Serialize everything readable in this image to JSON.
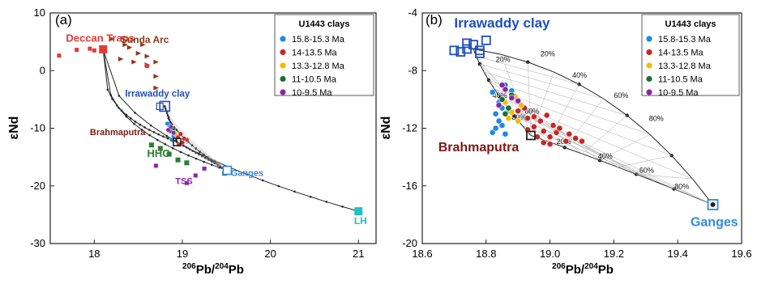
{
  "colors": {
    "c1": "#1e88e5",
    "c2": "#c62828",
    "c3": "#f9b800",
    "c4": "#1b6e3a",
    "c5": "#8e24aa",
    "deccan": "#e53935",
    "sunda": "#8b3a1a",
    "brahmaputra": "#7b1a12",
    "hhc": "#2e7d32",
    "tss": "#8e24aa",
    "ganges": "#2f8ae0",
    "irrawaddy": "#1f4fbf",
    "lh": "#20c0c8"
  },
  "chart_data": [
    {
      "panel": "(a)",
      "type": "scatter",
      "xlabel": "206Pb/204Pb",
      "ylabel": "εNd",
      "xlim": [
        17.5,
        21.2
      ],
      "ylim": [
        -30,
        10
      ],
      "xticks": [
        18,
        19,
        20,
        21
      ],
      "yticks": [
        -30,
        -20,
        -10,
        0,
        10
      ],
      "legend": {
        "title": "U1443 clays",
        "placement": "top-right",
        "entries": [
          "15.8-15.3 Ma",
          "14-13.5 Ma",
          "13.3-12.8 Ma",
          "11-10.5 Ma",
          "10-9.5 Ma"
        ]
      },
      "endmembers": [
        {
          "label": "Deccan Traps",
          "x": 18.1,
          "y": 3.7
        },
        {
          "label": "Irrawaddy clay",
          "x": 18.8,
          "y": -6.2
        },
        {
          "label": "Brahmaputra",
          "x": 18.94,
          "y": -12.4
        },
        {
          "label": "Ganges",
          "x": 19.51,
          "y": -17.3
        },
        {
          "label": "LH",
          "x": 21.0,
          "y": -24.4
        }
      ],
      "annotations": [
        "Sunda Arc",
        "HHC",
        "TSS"
      ],
      "sunda_arc": [
        [
          18.2,
          5.5
        ],
        [
          18.35,
          4.5
        ],
        [
          18.5,
          3.0
        ],
        [
          18.6,
          2.5
        ],
        [
          18.45,
          1.5
        ],
        [
          18.7,
          1.5
        ],
        [
          18.3,
          2.0
        ],
        [
          18.6,
          1.0
        ],
        [
          18.7,
          -1.0
        ],
        [
          18.7,
          -3.0
        ],
        [
          18.55,
          4.5
        ],
        [
          18.4,
          4.0
        ]
      ],
      "deccan_traps": [
        [
          17.6,
          2.6
        ],
        [
          17.8,
          3.6
        ],
        [
          17.95,
          3.8
        ],
        [
          18.0,
          3.5
        ],
        [
          18.6,
          0.8
        ]
      ],
      "hhc": [
        [
          18.65,
          -12.9
        ],
        [
          18.75,
          -13.5
        ],
        [
          18.95,
          -15.5
        ],
        [
          19.05,
          -16.0
        ],
        [
          19.48,
          -17.8
        ],
        [
          18.85,
          -14.5
        ]
      ],
      "tss": [
        [
          18.7,
          -16.5
        ],
        [
          19.15,
          -18.2
        ],
        [
          19.25,
          -17.0
        ],
        [
          19.05,
          -19.5
        ]
      ],
      "series": [
        {
          "name": "15.8-15.3 Ma",
          "points": [
            [
              18.85,
              -9.5
            ],
            [
              18.9,
              -10.5
            ],
            [
              18.88,
              -12.0
            ],
            [
              18.83,
              -9.2
            ],
            [
              18.9,
              -11.4
            ]
          ]
        },
        {
          "name": "14-13.5 Ma",
          "points": [
            [
              18.95,
              -11.5
            ],
            [
              19.0,
              -12.5
            ],
            [
              18.98,
              -11.0
            ],
            [
              19.05,
              -12.0
            ],
            [
              18.96,
              -12.8
            ],
            [
              19.02,
              -11.8
            ]
          ]
        },
        {
          "name": "13.3-12.8 Ma",
          "points": [
            [
              18.88,
              -10.2
            ],
            [
              18.92,
              -11.0
            ],
            [
              18.9,
              -9.8
            ]
          ]
        },
        {
          "name": "11-10.5 Ma",
          "points": [
            [
              18.86,
              -10.5
            ],
            [
              18.9,
              -10.0
            ]
          ]
        },
        {
          "name": "10-9.5 Ma",
          "points": [
            [
              18.87,
              -9.8
            ],
            [
              18.84,
              -10.3
            ],
            [
              18.9,
              -10.8
            ]
          ]
        }
      ]
    },
    {
      "panel": "(b)",
      "type": "scatter",
      "xlabel": "206Pb/204Pb",
      "ylabel": "εNd",
      "xlim": [
        18.6,
        19.6
      ],
      "ylim": [
        -20,
        -4
      ],
      "xticks": [
        18.6,
        18.8,
        19.0,
        19.2,
        19.4,
        19.6
      ],
      "yticks": [
        -20,
        -16,
        -12,
        -8,
        -4
      ],
      "legend": {
        "title": "U1443 clays",
        "placement": "top-right",
        "entries": [
          "15.8-15.3 Ma",
          "14-13.5 Ma",
          "13.3-12.8 Ma",
          "11-10.5 Ma",
          "10-9.5 Ma"
        ]
      },
      "endmembers": [
        {
          "label": "Irrawaddy clay",
          "x": 18.76,
          "y": -6.5
        },
        {
          "label": "Brahmaputra",
          "x": 18.94,
          "y": -12.5
        },
        {
          "label": "Ganges",
          "x": 19.51,
          "y": -17.3
        }
      ],
      "irrawaddy_squares": [
        [
          18.7,
          -6.6
        ],
        [
          18.72,
          -6.7
        ],
        [
          18.74,
          -6.1
        ],
        [
          18.76,
          -6.2
        ],
        [
          18.78,
          -6.6
        ],
        [
          18.8,
          -5.9
        ],
        [
          18.78,
          -6.8
        ],
        [
          18.74,
          -6.5
        ]
      ],
      "mixing_percent_labels": [
        "20%",
        "40%",
        "60%",
        "80%",
        "20%",
        "40%",
        "60%",
        "80%",
        "20%",
        "40%",
        "60%",
        "80%"
      ],
      "series": [
        {
          "name": "15.8-15.3 Ma",
          "points": [
            [
              18.82,
              -9.5
            ],
            [
              18.84,
              -10.2
            ],
            [
              18.83,
              -11.0
            ],
            [
              18.85,
              -11.8
            ],
            [
              18.82,
              -12.3
            ],
            [
              18.86,
              -9.0
            ],
            [
              18.87,
              -10.8
            ],
            [
              18.84,
              -11.5
            ],
            [
              18.88,
              -9.4
            ],
            [
              18.83,
              -12.0
            ],
            [
              18.86,
              -12.4
            ],
            [
              18.85,
              -10.6
            ]
          ]
        },
        {
          "name": "14-13.5 Ma",
          "points": [
            [
              18.9,
              -10.8
            ],
            [
              18.93,
              -11.3
            ],
            [
              18.95,
              -11.9
            ],
            [
              18.98,
              -12.2
            ],
            [
              19.0,
              -12.6
            ],
            [
              19.02,
              -12.3
            ],
            [
              19.05,
              -12.9
            ],
            [
              19.08,
              -12.7
            ],
            [
              19.1,
              -12.9
            ],
            [
              18.97,
              -11.5
            ],
            [
              18.99,
              -11.1
            ],
            [
              19.01,
              -11.8
            ],
            [
              18.96,
              -12.6
            ],
            [
              18.93,
              -12.1
            ],
            [
              19.03,
              -12.0
            ],
            [
              18.95,
              -11.2
            ],
            [
              18.92,
              -10.6
            ],
            [
              19.06,
              -12.4
            ],
            [
              18.98,
              -13.0
            ],
            [
              19.0,
              -13.1
            ]
          ]
        },
        {
          "name": "13.3-12.8 Ma",
          "points": [
            [
              18.86,
              -10.2
            ],
            [
              18.88,
              -10.9
            ],
            [
              18.9,
              -11.5
            ],
            [
              18.87,
              -11.3
            ],
            [
              18.89,
              -9.8
            ],
            [
              18.91,
              -10.4
            ]
          ]
        },
        {
          "name": "11-10.5 Ma",
          "points": [
            [
              18.85,
              -10.0
            ],
            [
              18.87,
              -10.6
            ],
            [
              18.88,
              -9.7
            ],
            [
              18.86,
              -11.0
            ]
          ]
        },
        {
          "name": "10-9.5 Ma",
          "points": [
            [
              18.86,
              -9.3
            ],
            [
              18.88,
              -9.9
            ],
            [
              18.84,
              -10.4
            ],
            [
              18.9,
              -10.1
            ],
            [
              18.85,
              -9.0
            ]
          ]
        }
      ]
    }
  ]
}
